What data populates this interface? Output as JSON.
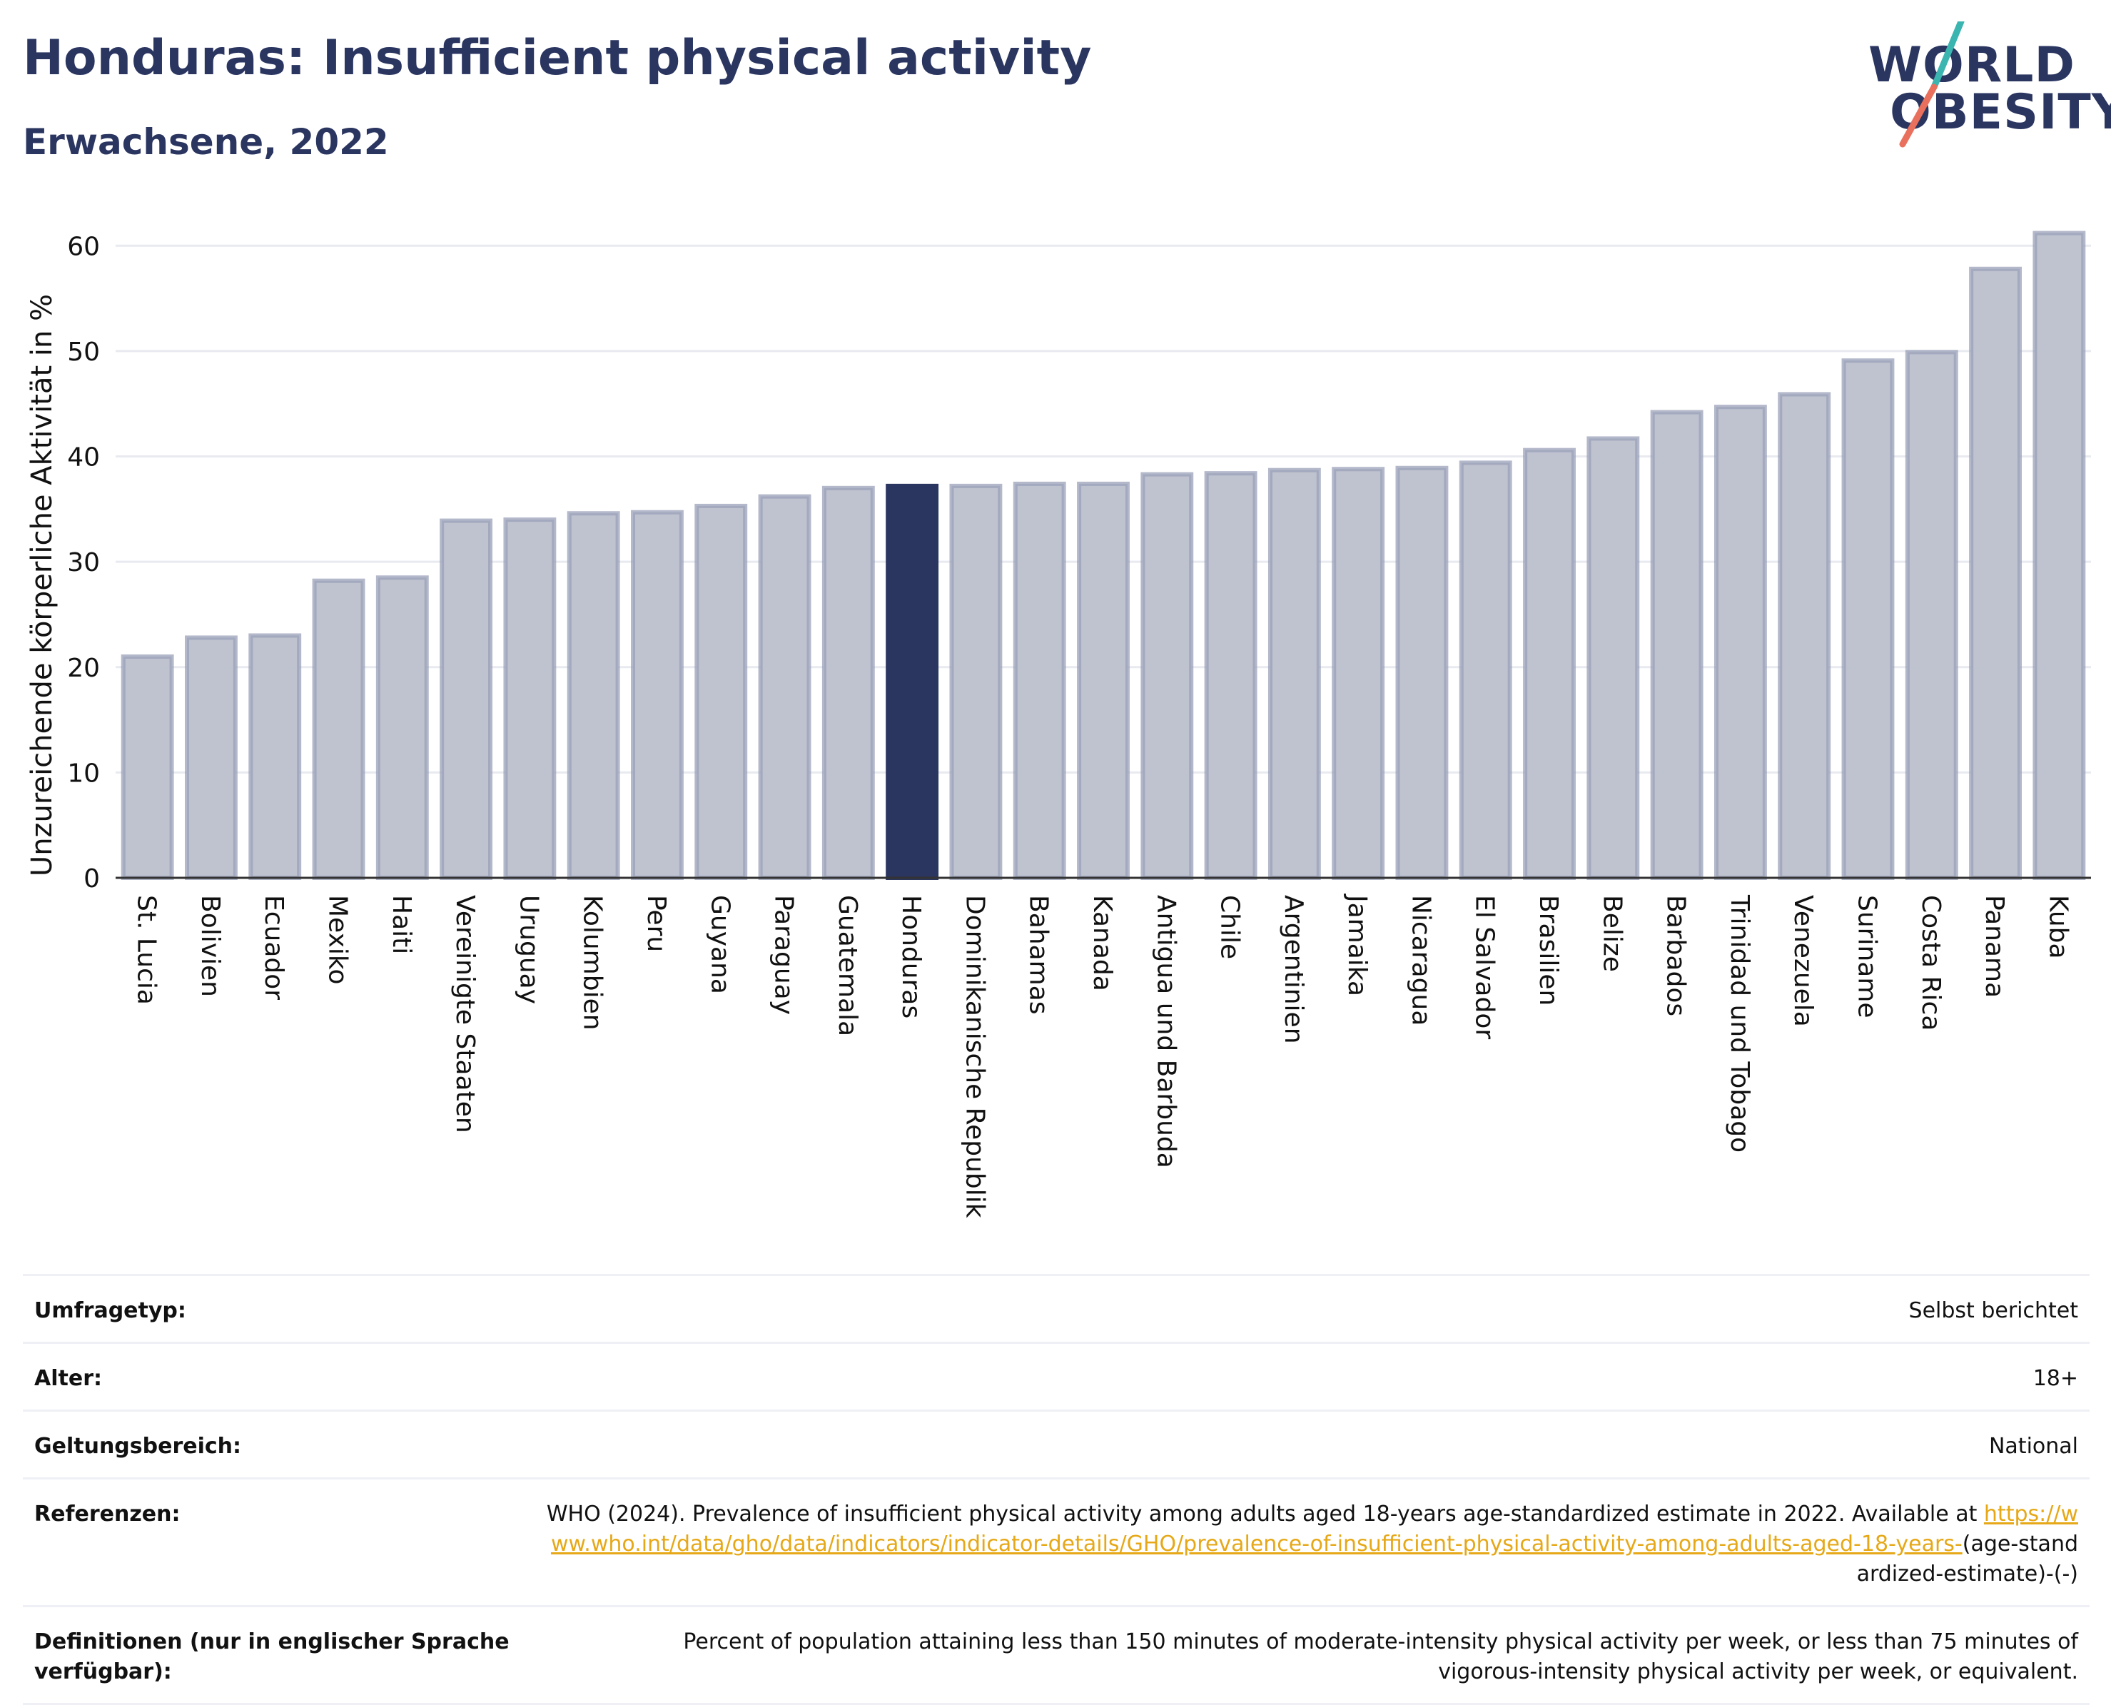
{
  "title": "Honduras: Insufficient physical activity",
  "subtitle": "Erwachsene, 2022",
  "logo": {
    "line1": "WORLD",
    "line2": "OBESITY"
  },
  "colors": {
    "bar": "#bfc2cf",
    "bar_stroke": "#9aa0b8",
    "highlight": "#2a3560",
    "title": "#2a3560",
    "grid": "#e8eaf0",
    "link": "#e6a817"
  },
  "chart_data": {
    "type": "bar",
    "ylabel": "Unzureichende körperliche Aktivität in %",
    "ylim": [
      0,
      63
    ],
    "yticks": [
      0,
      10,
      20,
      30,
      40,
      50,
      60
    ],
    "grid": true,
    "highlight": "Honduras",
    "categories": [
      "St. Lucia",
      "Bolivien",
      "Ecuador",
      "Mexiko",
      "Haiti",
      "Vereinigte Staaten",
      "Uruguay",
      "Kolumbien",
      "Peru",
      "Guyana",
      "Paraguay",
      "Guatemala",
      "Honduras",
      "Dominikanische Republik",
      "Bahamas",
      "Kanada",
      "Antigua und Barbuda",
      "Chile",
      "Argentinien",
      "Jamaika",
      "Nicaragua",
      "El Salvador",
      "Brasilien",
      "Belize",
      "Barbados",
      "Trinidad und Tobago",
      "Venezuela",
      "Suriname",
      "Costa Rica",
      "Panama",
      "Kuba"
    ],
    "values": [
      21.0,
      22.8,
      23.0,
      28.2,
      28.5,
      33.9,
      34.0,
      34.6,
      34.7,
      35.3,
      36.2,
      37.0,
      37.2,
      37.2,
      37.4,
      37.4,
      38.3,
      38.4,
      38.7,
      38.8,
      38.9,
      39.4,
      40.6,
      41.7,
      44.2,
      44.7,
      45.9,
      49.1,
      49.9,
      57.8,
      61.2
    ]
  },
  "meta": {
    "survey_label": "Umfragetyp:",
    "survey_value": "Selbst berichtet",
    "age_label": "Alter:",
    "age_value": "18+",
    "scope_label": "Geltungsbereich:",
    "scope_value": "National",
    "ref_label": "Referenzen:",
    "ref_text": "WHO (2024). Prevalence of insufficient physical activity among adults aged 18-years age-standardized estimate in 2022. Available at",
    "ref_link": "https://www.who.int/data/gho/data/indicators/indicator-details/GHO/prevalence-of-insufficient-physical-activity-among-adults-aged-18-years-",
    "ref_suffix": "(age-standardized-estimate)-(-)",
    "def_label": "Definitionen (nur in englischer Sprache verfügbar):",
    "def_value": "Percent of population attaining less than 150 minutes of moderate-intensity physical activity per week, or less than 75 minutes of vigorous-intensity physical activity per week, or equivalent."
  }
}
